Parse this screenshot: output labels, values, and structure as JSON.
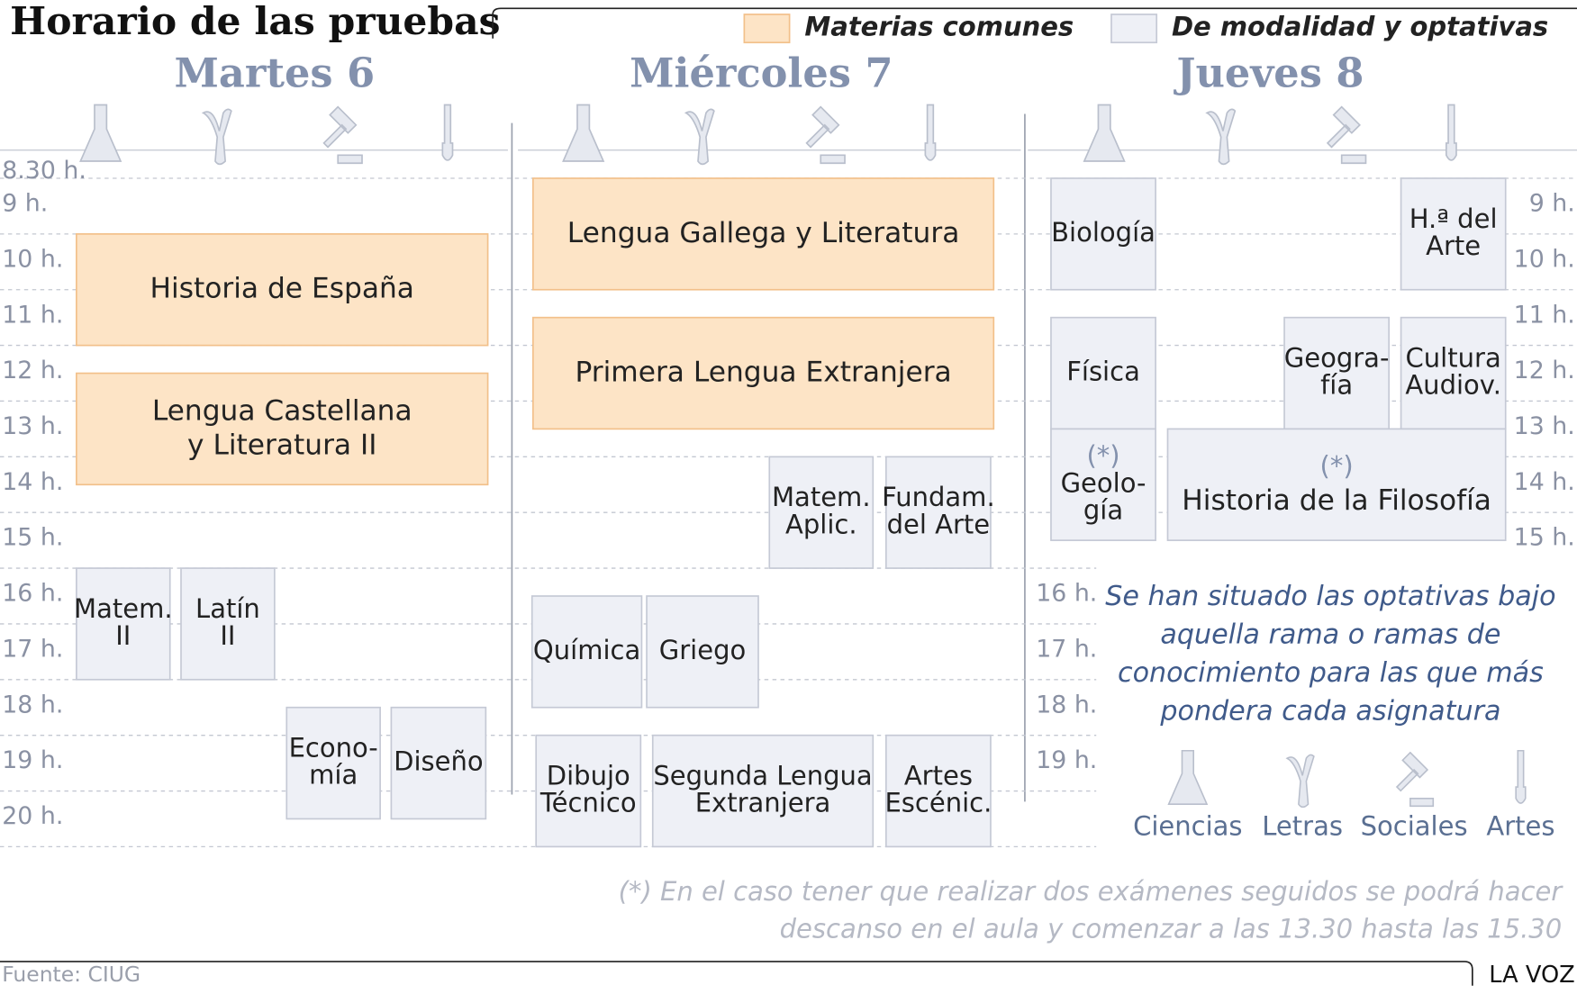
{
  "header": {
    "title": "Horario de las pruebas"
  },
  "legend": [
    {
      "label": "Materias comunes",
      "fill": "#fde4c6",
      "stroke": "#f2c08a"
    },
    {
      "label": "De modalidad y optativas",
      "fill": "#eef0f6",
      "stroke": "#c5c9d5"
    }
  ],
  "days": [
    {
      "label": "Martes 6",
      "blocks": [
        {
          "lines": [
            "Historia de España"
          ],
          "legend": 0,
          "start": 10,
          "end": 12
        },
        {
          "lines": [
            "Lengua Castellana",
            "y Literatura II"
          ],
          "legend": 0,
          "start": 12.5,
          "end": 14.5
        },
        {
          "lines": [
            "Matem.",
            "II"
          ],
          "legend": 1,
          "start": 16,
          "end": 18
        },
        {
          "lines": [
            "Latín",
            "II"
          ],
          "legend": 1,
          "start": 16,
          "end": 18
        },
        {
          "lines": [
            "Econo-",
            "mía"
          ],
          "legend": 1,
          "start": 18.5,
          "end": 20.5
        },
        {
          "lines": [
            "Diseño"
          ],
          "legend": 1,
          "start": 18.5,
          "end": 20.5
        }
      ]
    },
    {
      "label": "Miércoles 7",
      "blocks": [
        {
          "lines": [
            "Lengua Gallega y Literatura"
          ],
          "legend": 0,
          "start": 9,
          "end": 11
        },
        {
          "lines": [
            "Primera Lengua Extranjera"
          ],
          "legend": 0,
          "start": 11.5,
          "end": 13.5
        },
        {
          "lines": [
            "Matem.",
            "Aplic."
          ],
          "legend": 1,
          "start": 14,
          "end": 16
        },
        {
          "lines": [
            "Fundam.",
            "del Arte"
          ],
          "legend": 1,
          "start": 14,
          "end": 16
        },
        {
          "lines": [
            "Química"
          ],
          "legend": 1,
          "start": 16.5,
          "end": 18.5
        },
        {
          "lines": [
            "Griego"
          ],
          "legend": 1,
          "start": 16.5,
          "end": 18.5
        },
        {
          "lines": [
            "Dibujo",
            "Técnico"
          ],
          "legend": 1,
          "start": 19,
          "end": 21
        },
        {
          "lines": [
            "Segunda Lengua",
            "Extranjera"
          ],
          "legend": 1,
          "start": 19,
          "end": 21
        },
        {
          "lines": [
            "Artes",
            "Escénic."
          ],
          "legend": 1,
          "start": 19,
          "end": 21
        }
      ]
    },
    {
      "label": "Jueves 8",
      "blocks": [
        {
          "lines": [
            "Biología"
          ],
          "legend": 1,
          "start": 9,
          "end": 11
        },
        {
          "lines": [
            "H.ª del",
            "Arte"
          ],
          "legend": 1,
          "start": 9,
          "end": 11
        },
        {
          "lines": [
            "Física"
          ],
          "legend": 1,
          "start": 11.5,
          "end": 13.5
        },
        {
          "lines": [
            "Geogra-",
            "fía"
          ],
          "legend": 1,
          "start": 11.5,
          "end": 13.5
        },
        {
          "lines": [
            "Cultura",
            "Audiov."
          ],
          "legend": 1,
          "start": 11.5,
          "end": 13.5
        },
        {
          "mark": "(*)",
          "lines": [
            "Geolo-",
            "gía"
          ],
          "legend": 1,
          "start": 13.5,
          "end": 15.5
        },
        {
          "mark": "(*)",
          "lines": [
            "Historia de la Filosofía"
          ],
          "legend": 1,
          "start": 13.5,
          "end": 15.5
        }
      ]
    }
  ],
  "hour_labels": {
    "left": [
      {
        "hour": 8.3,
        "label": "8.30 h."
      },
      {
        "hour": 9,
        "label": "9 h."
      },
      {
        "hour": 10,
        "label": "10 h."
      },
      {
        "hour": 11,
        "label": "11 h."
      },
      {
        "hour": 12,
        "label": "12 h."
      },
      {
        "hour": 13,
        "label": "13 h."
      },
      {
        "hour": 14,
        "label": "14 h."
      },
      {
        "hour": 15,
        "label": "15 h."
      },
      {
        "hour": 16,
        "label": "16 h."
      },
      {
        "hour": 17,
        "label": "17 h."
      },
      {
        "hour": 18,
        "label": "18 h."
      },
      {
        "hour": 19,
        "label": "19 h."
      },
      {
        "hour": 20,
        "label": "20 h."
      }
    ],
    "middle": [
      {
        "hour": 16,
        "label": "16 h."
      },
      {
        "hour": 17,
        "label": "17 h."
      },
      {
        "hour": 18,
        "label": "18 h."
      },
      {
        "hour": 19,
        "label": "19 h."
      }
    ],
    "right": [
      {
        "hour": 9,
        "label": "9 h."
      },
      {
        "hour": 10,
        "label": "10 h."
      },
      {
        "hour": 11,
        "label": "11 h."
      },
      {
        "hour": 12,
        "label": "12 h."
      },
      {
        "hour": 13,
        "label": "13 h."
      },
      {
        "hour": 14,
        "label": "14 h."
      },
      {
        "hour": 15,
        "label": "15 h."
      }
    ]
  },
  "note": [
    "Se han situado las optativas bajo",
    "aquella rama o ramas de",
    "conocimiento para las que más",
    "pondera cada asignatura"
  ],
  "branches": [
    "Ciencias",
    "Letras",
    "Sociales",
    "Artes"
  ],
  "footnote": [
    "(*) En el caso tener que realizar dos exámenes seguidos se podrá hacer",
    "descanso en el aula y comenzar a las 13.30 hasta las 15.30"
  ],
  "source": "Fuente: CIUG",
  "brand": "LA VOZ"
}
